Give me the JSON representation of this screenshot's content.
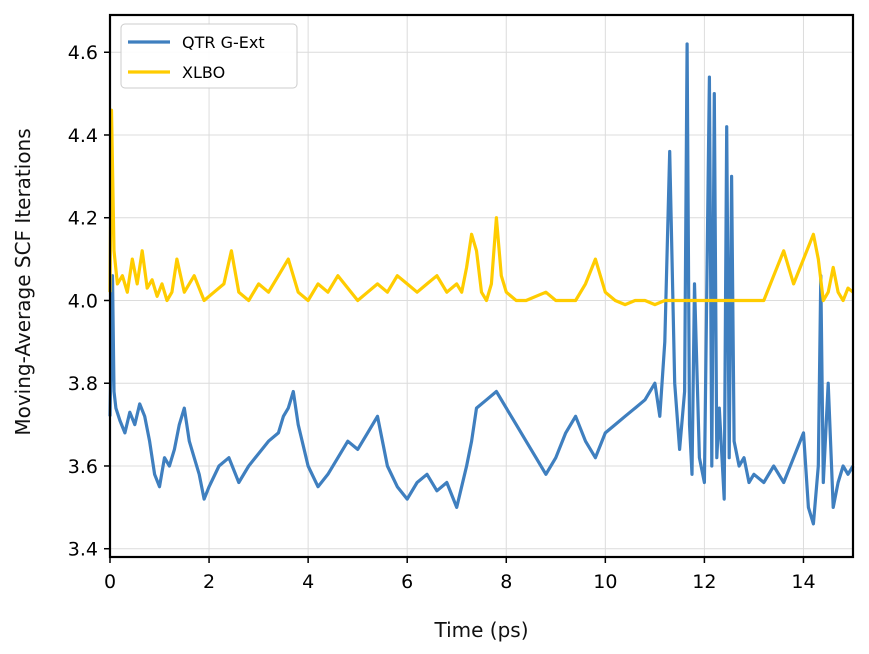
{
  "chart_data": {
    "type": "line",
    "title": "",
    "xlabel": "Time (ps)",
    "ylabel": "Moving-Average SCF Iterations",
    "xlim": [
      0,
      15
    ],
    "ylim": [
      3.38,
      4.69
    ],
    "xticks": [
      0,
      2,
      4,
      6,
      8,
      10,
      12,
      14
    ],
    "xtick_labels": [
      "0",
      "2",
      "4",
      "6",
      "8",
      "10",
      "12",
      "14"
    ],
    "yticks": [
      3.4,
      3.6,
      3.8,
      4.0,
      4.2,
      4.4,
      4.6
    ],
    "ytick_labels": [
      "3.4",
      "3.6",
      "3.8",
      "4.0",
      "4.2",
      "4.4",
      "4.6"
    ],
    "grid": true,
    "legend_position": "top-left",
    "series": [
      {
        "name": "QTR G-Ext",
        "color": "#3f7fbf",
        "x": [
          0,
          0.05,
          0.08,
          0.12,
          0.2,
          0.3,
          0.4,
          0.5,
          0.6,
          0.7,
          0.8,
          0.9,
          1.0,
          1.1,
          1.2,
          1.3,
          1.4,
          1.5,
          1.6,
          1.7,
          1.8,
          1.9,
          2.0,
          2.2,
          2.4,
          2.6,
          2.8,
          3.0,
          3.2,
          3.4,
          3.5,
          3.6,
          3.7,
          3.8,
          4.0,
          4.2,
          4.4,
          4.6,
          4.8,
          5.0,
          5.2,
          5.4,
          5.6,
          5.8,
          6.0,
          6.2,
          6.4,
          6.6,
          6.8,
          7.0,
          7.2,
          7.3,
          7.4,
          7.6,
          7.8,
          8.0,
          8.2,
          8.4,
          8.6,
          8.8,
          9.0,
          9.2,
          9.4,
          9.6,
          9.8,
          10.0,
          10.2,
          10.4,
          10.6,
          10.8,
          11.0,
          11.1,
          11.2,
          11.3,
          11.4,
          11.5,
          11.6,
          11.65,
          11.7,
          11.75,
          11.8,
          11.9,
          12.0,
          12.1,
          12.15,
          12.2,
          12.25,
          12.3,
          12.4,
          12.45,
          12.5,
          12.55,
          12.6,
          12.7,
          12.8,
          12.9,
          13.0,
          13.2,
          13.4,
          13.6,
          13.8,
          14.0,
          14.1,
          14.2,
          14.3,
          14.35,
          14.4,
          14.5,
          14.6,
          14.7,
          14.8,
          14.9,
          15.0
        ],
        "values": [
          3.72,
          4.06,
          3.78,
          3.74,
          3.71,
          3.68,
          3.73,
          3.7,
          3.75,
          3.72,
          3.66,
          3.58,
          3.55,
          3.62,
          3.6,
          3.64,
          3.7,
          3.74,
          3.66,
          3.62,
          3.58,
          3.52,
          3.55,
          3.6,
          3.62,
          3.56,
          3.6,
          3.63,
          3.66,
          3.68,
          3.72,
          3.74,
          3.78,
          3.7,
          3.6,
          3.55,
          3.58,
          3.62,
          3.66,
          3.64,
          3.68,
          3.72,
          3.6,
          3.55,
          3.52,
          3.56,
          3.58,
          3.54,
          3.56,
          3.5,
          3.6,
          3.66,
          3.74,
          3.76,
          3.78,
          3.74,
          3.7,
          3.66,
          3.62,
          3.58,
          3.62,
          3.68,
          3.72,
          3.66,
          3.62,
          3.68,
          3.7,
          3.72,
          3.74,
          3.76,
          3.8,
          3.72,
          3.9,
          4.36,
          3.8,
          3.64,
          3.78,
          4.62,
          3.7,
          3.58,
          4.04,
          3.62,
          3.56,
          4.54,
          3.6,
          4.5,
          3.62,
          3.74,
          3.52,
          4.42,
          3.62,
          4.3,
          3.66,
          3.6,
          3.62,
          3.56,
          3.58,
          3.56,
          3.6,
          3.56,
          3.62,
          3.68,
          3.5,
          3.46,
          3.6,
          4.06,
          3.56,
          3.8,
          3.5,
          3.56,
          3.6,
          3.58,
          3.6
        ]
      },
      {
        "name": "XLBO",
        "color": "#ffcc00",
        "x": [
          0,
          0.03,
          0.08,
          0.15,
          0.25,
          0.35,
          0.45,
          0.55,
          0.65,
          0.75,
          0.85,
          0.95,
          1.05,
          1.15,
          1.25,
          1.35,
          1.5,
          1.7,
          1.9,
          2.1,
          2.3,
          2.45,
          2.6,
          2.8,
          3.0,
          3.2,
          3.4,
          3.6,
          3.8,
          4.0,
          4.2,
          4.4,
          4.6,
          4.8,
          5.0,
          5.2,
          5.4,
          5.6,
          5.8,
          6.0,
          6.2,
          6.4,
          6.6,
          6.8,
          7.0,
          7.1,
          7.2,
          7.3,
          7.4,
          7.5,
          7.6,
          7.7,
          7.8,
          7.9,
          8.0,
          8.2,
          8.4,
          8.6,
          8.8,
          9.0,
          9.2,
          9.4,
          9.6,
          9.8,
          10.0,
          10.2,
          10.4,
          10.6,
          10.8,
          11.0,
          11.2,
          11.4,
          11.6,
          11.8,
          12.0,
          12.2,
          12.4,
          12.6,
          12.8,
          13.0,
          13.2,
          13.4,
          13.6,
          13.8,
          14.0,
          14.2,
          14.3,
          14.4,
          14.5,
          14.6,
          14.7,
          14.8,
          14.9,
          15.0
        ],
        "values": [
          4.02,
          4.46,
          4.12,
          4.04,
          4.06,
          4.02,
          4.1,
          4.04,
          4.12,
          4.03,
          4.05,
          4.01,
          4.04,
          4.0,
          4.02,
          4.1,
          4.02,
          4.06,
          4.0,
          4.02,
          4.04,
          4.12,
          4.02,
          4.0,
          4.04,
          4.02,
          4.06,
          4.1,
          4.02,
          4.0,
          4.04,
          4.02,
          4.06,
          4.03,
          4.0,
          4.02,
          4.04,
          4.02,
          4.06,
          4.04,
          4.02,
          4.04,
          4.06,
          4.02,
          4.04,
          4.02,
          4.08,
          4.16,
          4.12,
          4.02,
          4.0,
          4.04,
          4.2,
          4.06,
          4.02,
          4.0,
          4.0,
          4.01,
          4.02,
          4.0,
          4.0,
          4.0,
          4.04,
          4.1,
          4.02,
          4.0,
          3.99,
          4.0,
          4.0,
          3.99,
          4.0,
          4.0,
          4.0,
          4.0,
          4.0,
          4.0,
          4.0,
          4.0,
          4.0,
          4.0,
          4.0,
          4.06,
          4.12,
          4.04,
          4.1,
          4.16,
          4.1,
          4.0,
          4.02,
          4.08,
          4.02,
          4.0,
          4.03,
          4.02
        ]
      }
    ]
  }
}
